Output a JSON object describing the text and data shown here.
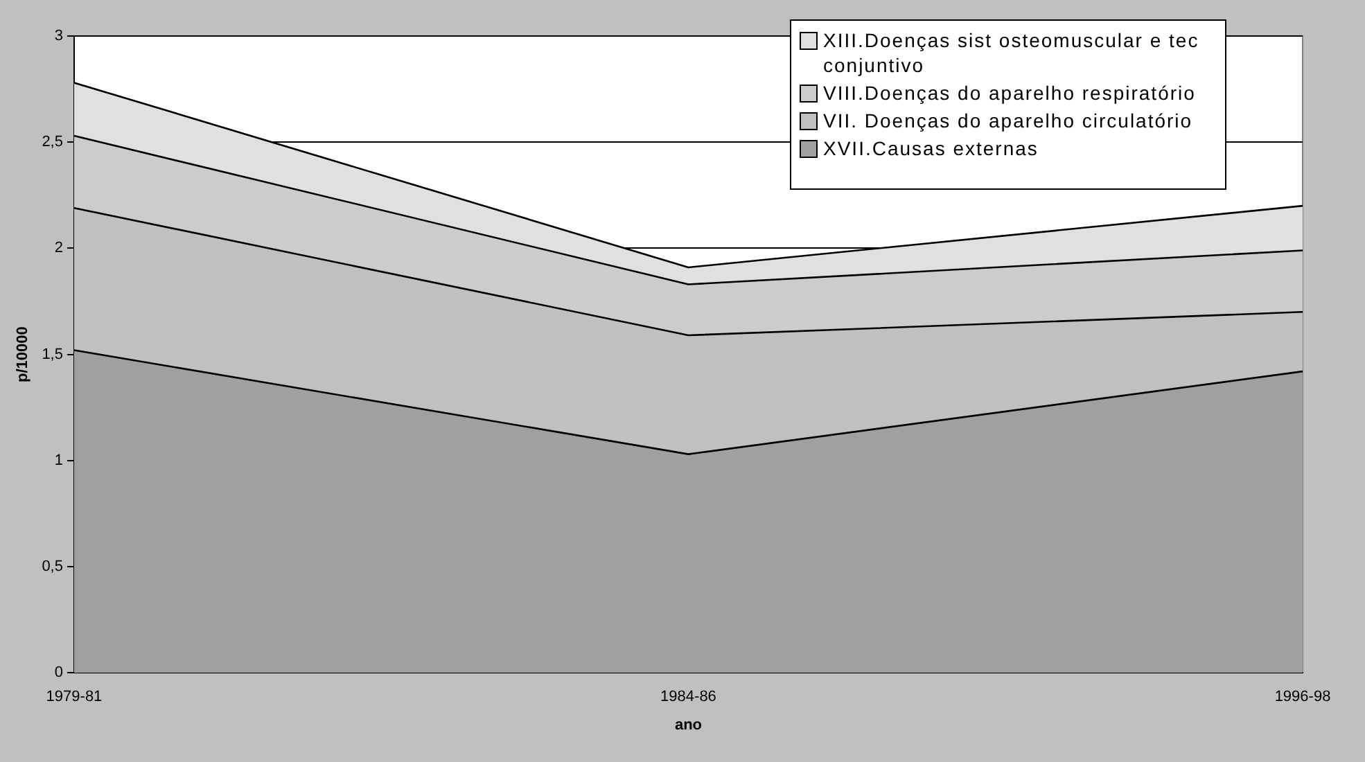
{
  "chart_data": {
    "type": "area",
    "stacked": true,
    "xlabel": "ano",
    "ylabel": "p/10000",
    "categories": [
      "1979-81",
      "1984-86",
      "1996-98"
    ],
    "series": [
      {
        "name": "XVII.Causas externas",
        "color": "#a0a0a0",
        "values": [
          1.52,
          1.03,
          1.42
        ]
      },
      {
        "name": "VII. Doenças do aparelho circulatório",
        "color": "#c0c0c0",
        "values": [
          0.67,
          0.56,
          0.28
        ]
      },
      {
        "name": "VIII.Doenças do aparelho respiratório",
        "color": "#cccccc",
        "values": [
          0.34,
          0.24,
          0.29
        ]
      },
      {
        "name": "XIII.Doenças sist osteomuscular e tec conjuntivo",
        "color": "#e0e0e0",
        "values": [
          0.25,
          0.08,
          0.21
        ]
      }
    ],
    "ylim": [
      0,
      3
    ],
    "yticks": [
      0,
      {
        "value": 0.5,
        "label": "0,5"
      },
      1,
      {
        "value": 1.5,
        "label": "1,5"
      },
      2,
      {
        "value": 2.5,
        "label": "2,5"
      },
      3
    ],
    "grid": "y",
    "legend": "top right"
  }
}
